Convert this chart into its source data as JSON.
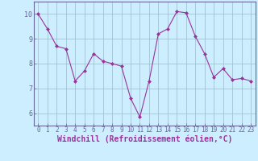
{
  "x": [
    0,
    1,
    2,
    3,
    4,
    5,
    6,
    7,
    8,
    9,
    10,
    11,
    12,
    13,
    14,
    15,
    16,
    17,
    18,
    19,
    20,
    21,
    22,
    23
  ],
  "y": [
    10.0,
    9.4,
    8.7,
    8.6,
    7.3,
    7.7,
    8.4,
    8.1,
    8.0,
    7.9,
    6.6,
    5.85,
    7.3,
    9.2,
    9.4,
    10.1,
    10.05,
    9.1,
    8.4,
    7.45,
    7.8,
    7.35,
    7.4,
    7.3
  ],
  "line_color": "#993399",
  "marker_color": "#993399",
  "bg_color": "#cceeff",
  "grid_color": "#99bbcc",
  "axis_color": "#666699",
  "xlabel": "Windchill (Refroidissement éolien,°C)",
  "ylim": [
    5.5,
    10.5
  ],
  "xlim": [
    -0.5,
    23.5
  ],
  "yticks": [
    6,
    7,
    8,
    9,
    10
  ],
  "xticks": [
    0,
    1,
    2,
    3,
    4,
    5,
    6,
    7,
    8,
    9,
    10,
    11,
    12,
    13,
    14,
    15,
    16,
    17,
    18,
    19,
    20,
    21,
    22,
    23
  ],
  "tick_fontsize": 5.5,
  "xlabel_fontsize": 7.0
}
